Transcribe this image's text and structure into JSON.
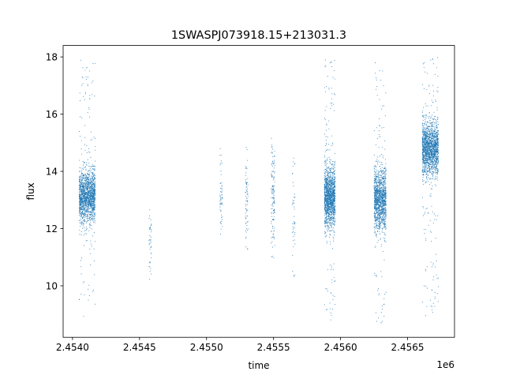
{
  "chart_data": {
    "type": "scatter",
    "title": "1SWASPJ073918.15+213031.3",
    "xlabel": "time",
    "ylabel": "flux",
    "x_offset_label": "1e6",
    "xlim": [
      2.45393,
      2.45685
    ],
    "ylim": [
      8.2,
      18.4
    ],
    "x_ticks": [
      2.454,
      2.4545,
      2.455,
      2.4555,
      2.456,
      2.4565
    ],
    "x_tick_labels": [
      "2.4540",
      "2.4545",
      "2.4550",
      "2.4555",
      "2.4560",
      "2.4565"
    ],
    "y_ticks": [
      10,
      12,
      14,
      16,
      18
    ],
    "y_tick_labels": [
      "10",
      "12",
      "14",
      "16",
      "18"
    ],
    "marker_color": "#1f77b4",
    "grid": false,
    "series": [
      {
        "clusters": [
          {
            "x_range": [
              2.45405,
              2.45417
            ],
            "center": 13.1,
            "spread": 0.45,
            "min": 8.75,
            "max": 17.9,
            "density": 1600
          },
          {
            "x_range": [
              2.45457,
              2.45459
            ],
            "center": 11.6,
            "spread": 0.7,
            "min": 9.8,
            "max": 12.9,
            "density": 45
          },
          {
            "x_range": [
              2.4551,
              2.45512
            ],
            "center": 13.1,
            "spread": 0.8,
            "min": 11.8,
            "max": 14.8,
            "density": 60
          },
          {
            "x_range": [
              2.45529,
              2.45531
            ],
            "center": 13.0,
            "spread": 1.0,
            "min": 10.9,
            "max": 14.9,
            "density": 70
          },
          {
            "x_range": [
              2.45548,
              2.45551
            ],
            "center": 13.2,
            "spread": 1.0,
            "min": 10.9,
            "max": 15.2,
            "density": 140
          },
          {
            "x_range": [
              2.45564,
              2.45566
            ],
            "center": 12.3,
            "spread": 1.4,
            "min": 10.3,
            "max": 14.6,
            "density": 50
          },
          {
            "x_range": [
              2.45588,
              2.45596
            ],
            "center": 13.1,
            "spread": 0.5,
            "min": 8.7,
            "max": 17.9,
            "density": 1500
          },
          {
            "x_range": [
              2.45625,
              2.45634
            ],
            "center": 13.0,
            "spread": 0.55,
            "min": 8.6,
            "max": 17.8,
            "density": 1300
          },
          {
            "x_range": [
              2.45661,
              2.45673
            ],
            "center": 14.8,
            "spread": 0.45,
            "min": 8.8,
            "max": 18.0,
            "density": 1700
          }
        ]
      }
    ]
  }
}
